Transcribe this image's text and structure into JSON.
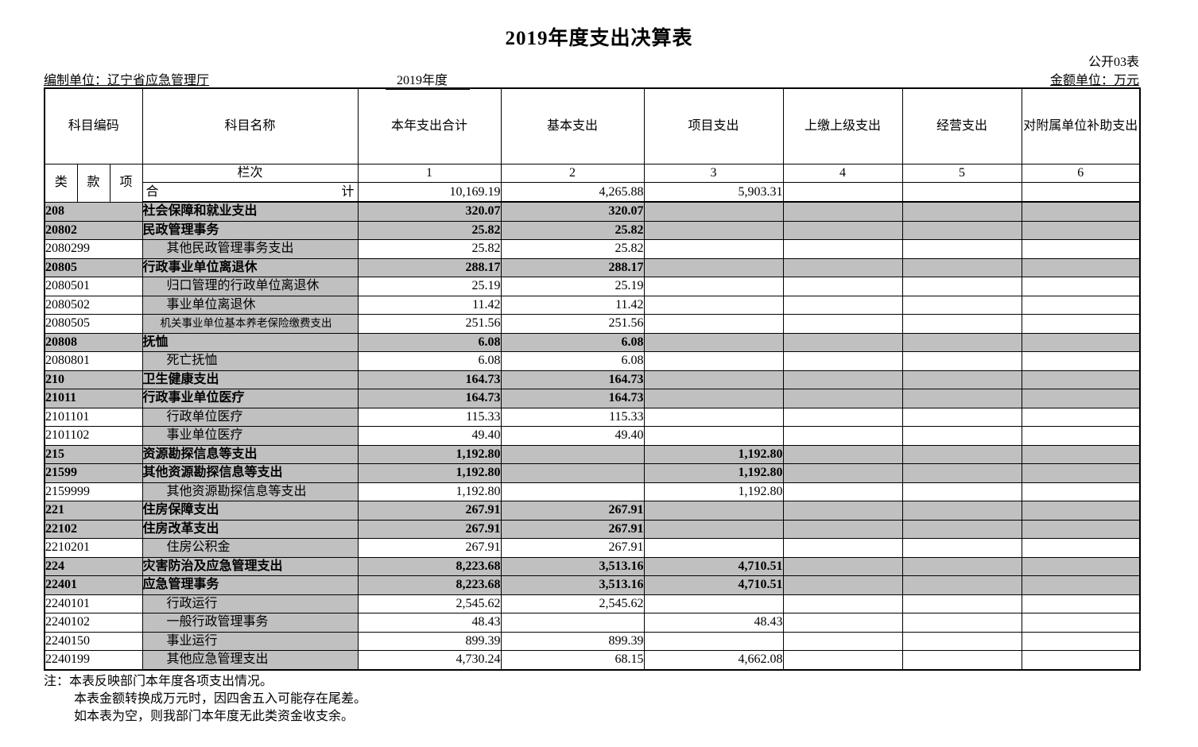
{
  "title": "2019年度支出决算表",
  "meta": {
    "sheet_label": "公开03表",
    "unit_label": "编制单位：辽宁省应急管理厅",
    "period": "2019年度",
    "amount_unit": "金额单位：万元"
  },
  "table": {
    "headers": {
      "subject_code": "科目编码",
      "subject_name": "科目名称",
      "code_parts": [
        "类",
        "款",
        "项"
      ],
      "lanci": "栏次",
      "columns": [
        "本年支出合计",
        "基本支出",
        "项目支出",
        "上缴上级支出",
        "经营支出",
        "对附属单位补助支出"
      ],
      "column_numbers": [
        "1",
        "2",
        "3",
        "4",
        "5",
        "6"
      ]
    },
    "total_row": {
      "label_left": "合",
      "label_right": "计",
      "values": [
        "10,169.19",
        "4,265.88",
        "5,903.31",
        "",
        "",
        ""
      ]
    },
    "rows": [
      {
        "code": "208",
        "name": "社会保障和就业支出",
        "level": "parent",
        "values": [
          "320.07",
          "320.07",
          "",
          "",
          "",
          ""
        ]
      },
      {
        "code": "20802",
        "name": "民政管理事务",
        "level": "parent",
        "values": [
          "25.82",
          "25.82",
          "",
          "",
          "",
          ""
        ]
      },
      {
        "code": "2080299",
        "name": "其他民政管理事务支出",
        "level": "leaf",
        "values": [
          "25.82",
          "25.82",
          "",
          "",
          "",
          ""
        ]
      },
      {
        "code": "20805",
        "name": "行政事业单位离退休",
        "level": "parent",
        "values": [
          "288.17",
          "288.17",
          "",
          "",
          "",
          ""
        ]
      },
      {
        "code": "2080501",
        "name": "归口管理的行政单位离退休",
        "level": "leaf",
        "values": [
          "25.19",
          "25.19",
          "",
          "",
          "",
          ""
        ]
      },
      {
        "code": "2080502",
        "name": "事业单位离退休",
        "level": "leaf",
        "values": [
          "11.42",
          "11.42",
          "",
          "",
          "",
          ""
        ]
      },
      {
        "code": "2080505",
        "name": "机关事业单位基本养老保险缴费支出",
        "level": "leaf",
        "values": [
          "251.56",
          "251.56",
          "",
          "",
          "",
          ""
        ]
      },
      {
        "code": "20808",
        "name": "抚恤",
        "level": "parent",
        "values": [
          "6.08",
          "6.08",
          "",
          "",
          "",
          ""
        ]
      },
      {
        "code": "2080801",
        "name": "死亡抚恤",
        "level": "leaf",
        "values": [
          "6.08",
          "6.08",
          "",
          "",
          "",
          ""
        ]
      },
      {
        "code": "210",
        "name": "卫生健康支出",
        "level": "parent",
        "values": [
          "164.73",
          "164.73",
          "",
          "",
          "",
          ""
        ]
      },
      {
        "code": "21011",
        "name": "行政事业单位医疗",
        "level": "parent",
        "values": [
          "164.73",
          "164.73",
          "",
          "",
          "",
          ""
        ]
      },
      {
        "code": "2101101",
        "name": "行政单位医疗",
        "level": "leaf",
        "values": [
          "115.33",
          "115.33",
          "",
          "",
          "",
          ""
        ]
      },
      {
        "code": "2101102",
        "name": "事业单位医疗",
        "level": "leaf",
        "values": [
          "49.40",
          "49.40",
          "",
          "",
          "",
          ""
        ]
      },
      {
        "code": "215",
        "name": "资源勘探信息等支出",
        "level": "parent",
        "values": [
          "1,192.80",
          "",
          "1,192.80",
          "",
          "",
          ""
        ]
      },
      {
        "code": "21599",
        "name": "其他资源勘探信息等支出",
        "level": "parent",
        "values": [
          "1,192.80",
          "",
          "1,192.80",
          "",
          "",
          ""
        ]
      },
      {
        "code": "2159999",
        "name": "其他资源勘探信息等支出",
        "level": "leaf",
        "values": [
          "1,192.80",
          "",
          "1,192.80",
          "",
          "",
          ""
        ]
      },
      {
        "code": "221",
        "name": "住房保障支出",
        "level": "parent",
        "values": [
          "267.91",
          "267.91",
          "",
          "",
          "",
          ""
        ]
      },
      {
        "code": "22102",
        "name": "住房改革支出",
        "level": "parent",
        "values": [
          "267.91",
          "267.91",
          "",
          "",
          "",
          ""
        ]
      },
      {
        "code": "2210201",
        "name": "住房公积金",
        "level": "leaf",
        "values": [
          "267.91",
          "267.91",
          "",
          "",
          "",
          ""
        ]
      },
      {
        "code": "224",
        "name": "灾害防治及应急管理支出",
        "level": "parent",
        "values": [
          "8,223.68",
          "3,513.16",
          "4,710.51",
          "",
          "",
          ""
        ]
      },
      {
        "code": "22401",
        "name": "应急管理事务",
        "level": "parent",
        "values": [
          "8,223.68",
          "3,513.16",
          "4,710.51",
          "",
          "",
          ""
        ]
      },
      {
        "code": "2240101",
        "name": "行政运行",
        "level": "leaf",
        "values": [
          "2,545.62",
          "2,545.62",
          "",
          "",
          "",
          ""
        ]
      },
      {
        "code": "2240102",
        "name": "一般行政管理事务",
        "level": "leaf",
        "values": [
          "48.43",
          "",
          "48.43",
          "",
          "",
          ""
        ]
      },
      {
        "code": "2240150",
        "name": "事业运行",
        "level": "leaf",
        "values": [
          "899.39",
          "899.39",
          "",
          "",
          "",
          ""
        ]
      },
      {
        "code": "2240199",
        "name": "其他应急管理支出",
        "level": "leaf",
        "values": [
          "4,730.24",
          "68.15",
          "4,662.08",
          "",
          "",
          ""
        ]
      }
    ]
  },
  "notes": [
    "注：本表反映部门本年度各项支出情况。",
    "本表金额转换成万元时，因四舍五入可能存在尾差。",
    "如本表为空，则我部门本年度无此类资金收支余。"
  ]
}
